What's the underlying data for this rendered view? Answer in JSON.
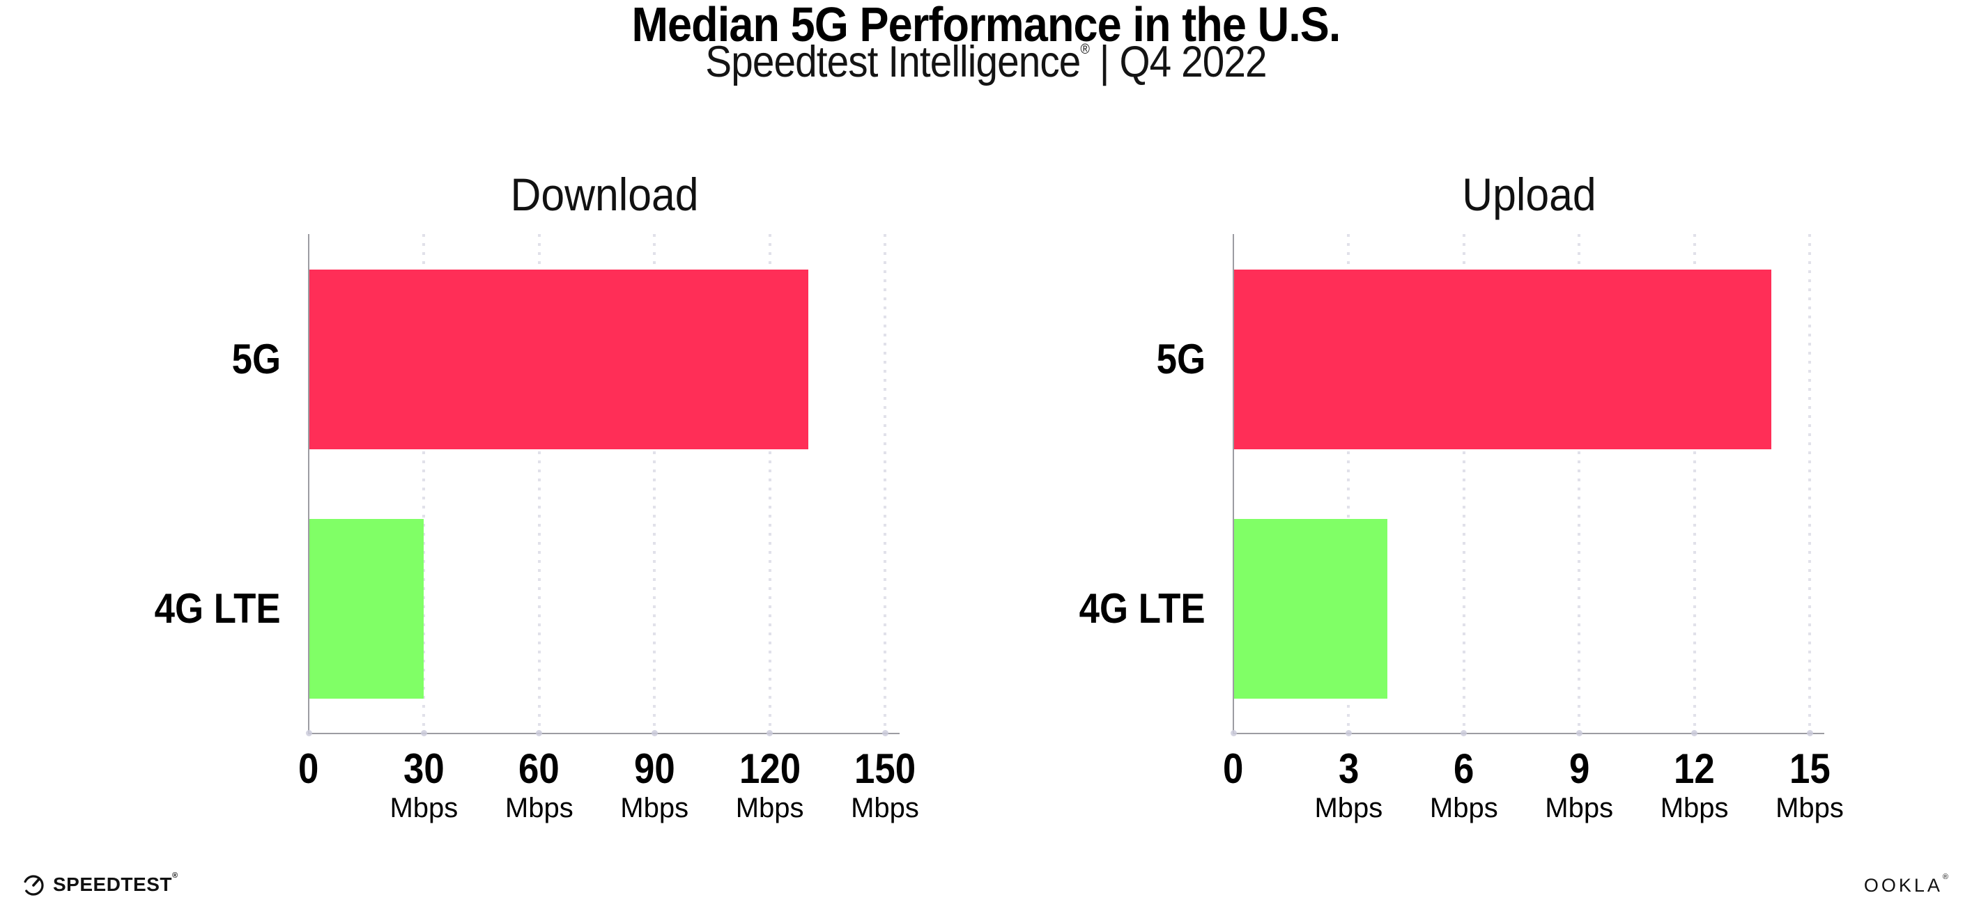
{
  "header": {
    "title": "Median 5G Performance in the U.S.",
    "subtitle_name": "Speedtest Intelligence",
    "subtitle_reg": "®",
    "subtitle_rest": " | Q4 2022"
  },
  "chart_data": [
    {
      "type": "bar",
      "orientation": "horizontal",
      "title": "Download",
      "categories": [
        "5G",
        "4G LTE"
      ],
      "values": [
        130,
        30
      ],
      "unit": "Mbps",
      "xlim": [
        0,
        150
      ],
      "xticks": [
        0,
        30,
        60,
        90,
        120,
        150
      ],
      "tick_unit_label": "Mbps",
      "bar_colors": [
        "#FF2E57",
        "#80FF66"
      ],
      "grid": "dotted-vertical-gridlines",
      "legend": "none"
    },
    {
      "type": "bar",
      "orientation": "horizontal",
      "title": "Upload",
      "categories": [
        "5G",
        "4G LTE"
      ],
      "values": [
        14,
        4
      ],
      "unit": "Mbps",
      "xlim": [
        0,
        15
      ],
      "xticks": [
        0,
        3,
        6,
        9,
        12,
        15
      ],
      "tick_unit_label": "Mbps",
      "bar_colors": [
        "#FF2E57",
        "#80FF66"
      ],
      "grid": "dotted-vertical-gridlines",
      "legend": "none"
    }
  ],
  "footer": {
    "speedtest_label": "SPEEDTEST",
    "speedtest_reg": "®",
    "ookla_label": "OOKLA",
    "ookla_reg": "®"
  },
  "colors": {
    "bar_5g": "#FF2E57",
    "bar_4g_lte": "#80FF66",
    "axis_line": "#9C9CA2",
    "gridline": "#E1E1EA",
    "text": "#000000"
  }
}
